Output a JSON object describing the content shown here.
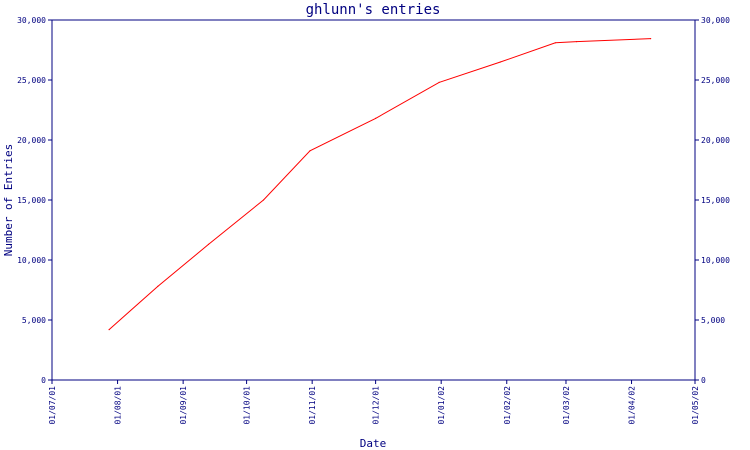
{
  "chart_data": {
    "type": "line",
    "title": "ghlunn's entries",
    "xlabel": "Date",
    "ylabel": "Number of Entries",
    "x_ticks": [
      "01/07/01",
      "01/08/01",
      "01/09/01",
      "01/10/01",
      "01/11/01",
      "01/12/01",
      "01/01/02",
      "01/02/02",
      "01/03/02",
      "01/04/02",
      "01/05/02"
    ],
    "y_ticks": [
      "0",
      "5,000",
      "10,000",
      "15,000",
      "20,000",
      "25,000",
      "30,000"
    ],
    "ylim": [
      0,
      30000
    ],
    "grid": false,
    "series": [
      {
        "x": [
          "2001-07-28",
          "2001-08-20",
          "2001-09-13",
          "2001-10-09",
          "2001-10-31",
          "2001-12-01",
          "2001-12-31",
          "2002-01-29",
          "2002-02-24",
          "2002-03-06",
          "2002-04-10"
        ],
        "values": [
          4200,
          7800,
          11300,
          15000,
          19100,
          21800,
          24800,
          26500,
          28100,
          28200,
          28450
        ]
      }
    ],
    "colors": {
      "axes": "#000080",
      "line": "#ff0000"
    }
  }
}
